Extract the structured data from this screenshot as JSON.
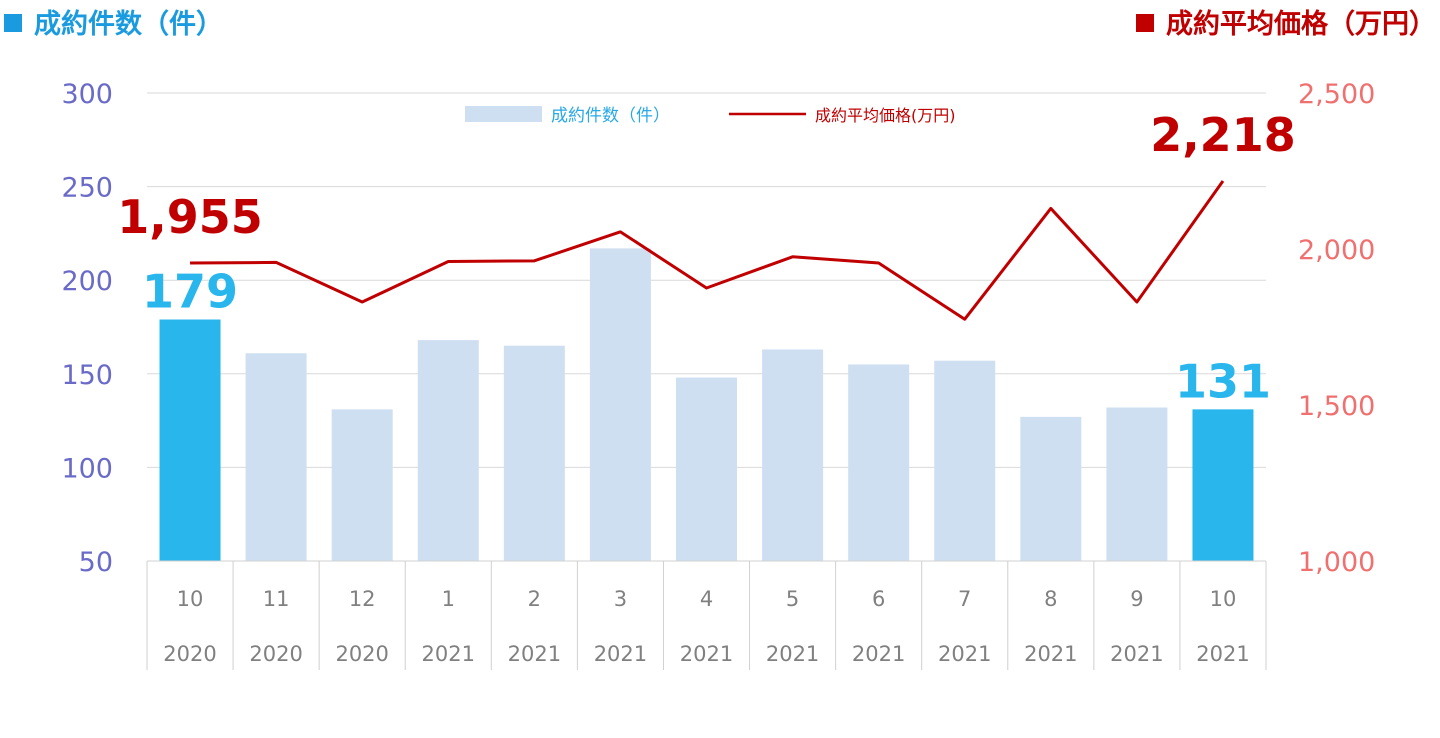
{
  "header": {
    "left_label": "成約件数（件）",
    "right_label": "成約平均価格（万円）",
    "left_color": "#1a9be0",
    "right_color": "#c00000"
  },
  "chart_data": {
    "type": "bar",
    "categories": [
      {
        "month": "10",
        "year": "2020"
      },
      {
        "month": "11",
        "year": "2020"
      },
      {
        "month": "12",
        "year": "2020"
      },
      {
        "month": "1",
        "year": "2021"
      },
      {
        "month": "2",
        "year": "2021"
      },
      {
        "month": "3",
        "year": "2021"
      },
      {
        "month": "4",
        "year": "2021"
      },
      {
        "month": "5",
        "year": "2021"
      },
      {
        "month": "6",
        "year": "2021"
      },
      {
        "month": "7",
        "year": "2021"
      },
      {
        "month": "8",
        "year": "2021"
      },
      {
        "month": "9",
        "year": "2021"
      },
      {
        "month": "10",
        "year": "2021"
      }
    ],
    "series": [
      {
        "name": "成約件数（件）",
        "type": "bar",
        "axis": "left",
        "values": [
          179,
          161,
          131,
          168,
          165,
          217,
          148,
          163,
          155,
          157,
          127,
          132,
          131
        ],
        "color": "#cfdff2",
        "highlight_color": "#29b6ec",
        "highlight_indices": [
          0,
          12
        ]
      },
      {
        "name": "成約平均価格(万円)",
        "type": "line",
        "axis": "right",
        "values": [
          1955,
          1957,
          1830,
          1960,
          1962,
          2055,
          1875,
          1975,
          1955,
          1775,
          2130,
          1830,
          2218
        ],
        "color": "#c00000"
      }
    ],
    "left_axis": {
      "ylim": [
        50,
        300
      ],
      "ticks": [
        "50",
        "100",
        "150",
        "200",
        "250",
        "300"
      ],
      "color": "#6a6ac8"
    },
    "right_axis": {
      "ylim": [
        1000,
        2500
      ],
      "ticks": [
        "1,000",
        "1,500",
        "2,000",
        "2,500"
      ],
      "color": "#f07070"
    },
    "grid": true,
    "legend": {
      "position": "top-center",
      "bar_label": "成約件数（件）",
      "line_label": "成約平均価格(万円)"
    },
    "annotations": [
      {
        "series": "成約件数（件）",
        "index": 0,
        "text": "179",
        "color": "#29b6ec"
      },
      {
        "series": "成約件数（件）",
        "index": 12,
        "text": "131",
        "color": "#29b6ec"
      },
      {
        "series": "成約平均価格(万円)",
        "index": 0,
        "text": "1,955",
        "color": "#c00000"
      },
      {
        "series": "成約平均価格(万円)",
        "index": 12,
        "text": "2,218",
        "color": "#c00000"
      }
    ]
  }
}
